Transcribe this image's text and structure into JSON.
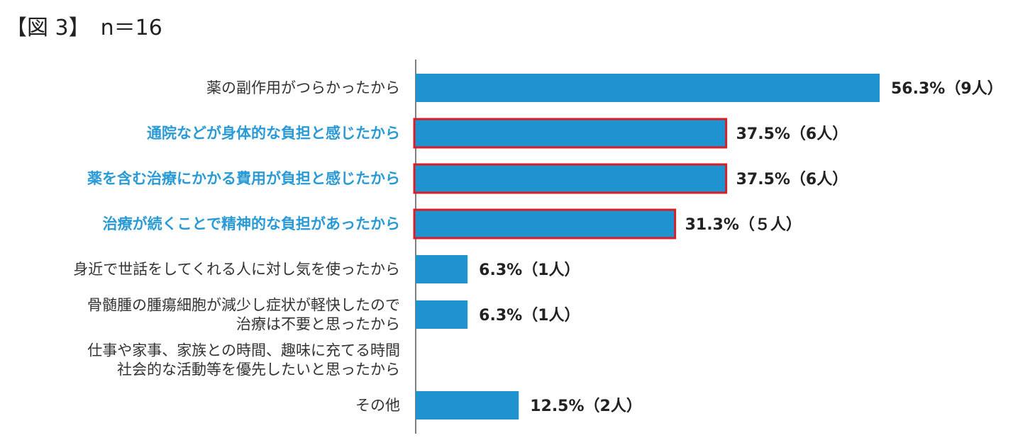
{
  "figure_label": "【図 3】　n＝16",
  "colors": {
    "bar": "#1f93d0",
    "highlight_border": "#d81e28",
    "highlight_text": "#2a9ad6",
    "axis": "#555555"
  },
  "chart_data": {
    "type": "bar",
    "orientation": "horizontal",
    "n": 16,
    "xlim": [
      0,
      60
    ],
    "unit": "%",
    "categories": [
      [
        "薬の副作用がつらかったから"
      ],
      [
        "通院などが身体的な負担と感じたから"
      ],
      [
        "薬を含む治療にかかる費用が負担と感じたから"
      ],
      [
        "治療が続くことで精神的な負担があったから"
      ],
      [
        "身近で世話をしてくれる人に対し気を使ったから"
      ],
      [
        "骨髄腫の腫瘍細胞が減少し症状が軽快したので",
        "治療は不要と思ったから"
      ],
      [
        "仕事や家事、家族との時間、趣味に充てる時間",
        "社会的な活動等を優先したいと思ったから"
      ],
      [
        "その他"
      ]
    ],
    "values": [
      56.3,
      37.5,
      37.5,
      31.3,
      6.3,
      6.3,
      0,
      12.5
    ],
    "counts": [
      9,
      6,
      6,
      5,
      1,
      1,
      0,
      2
    ],
    "value_labels": [
      "56.3%（9人）",
      "37.5%（6人）",
      "37.5%（6人）",
      "31.3%（５人）",
      "6.3%（1人）",
      "6.3%（1人）",
      "",
      "12.5%（2人）"
    ],
    "highlighted": [
      false,
      true,
      true,
      true,
      false,
      false,
      false,
      false
    ]
  }
}
